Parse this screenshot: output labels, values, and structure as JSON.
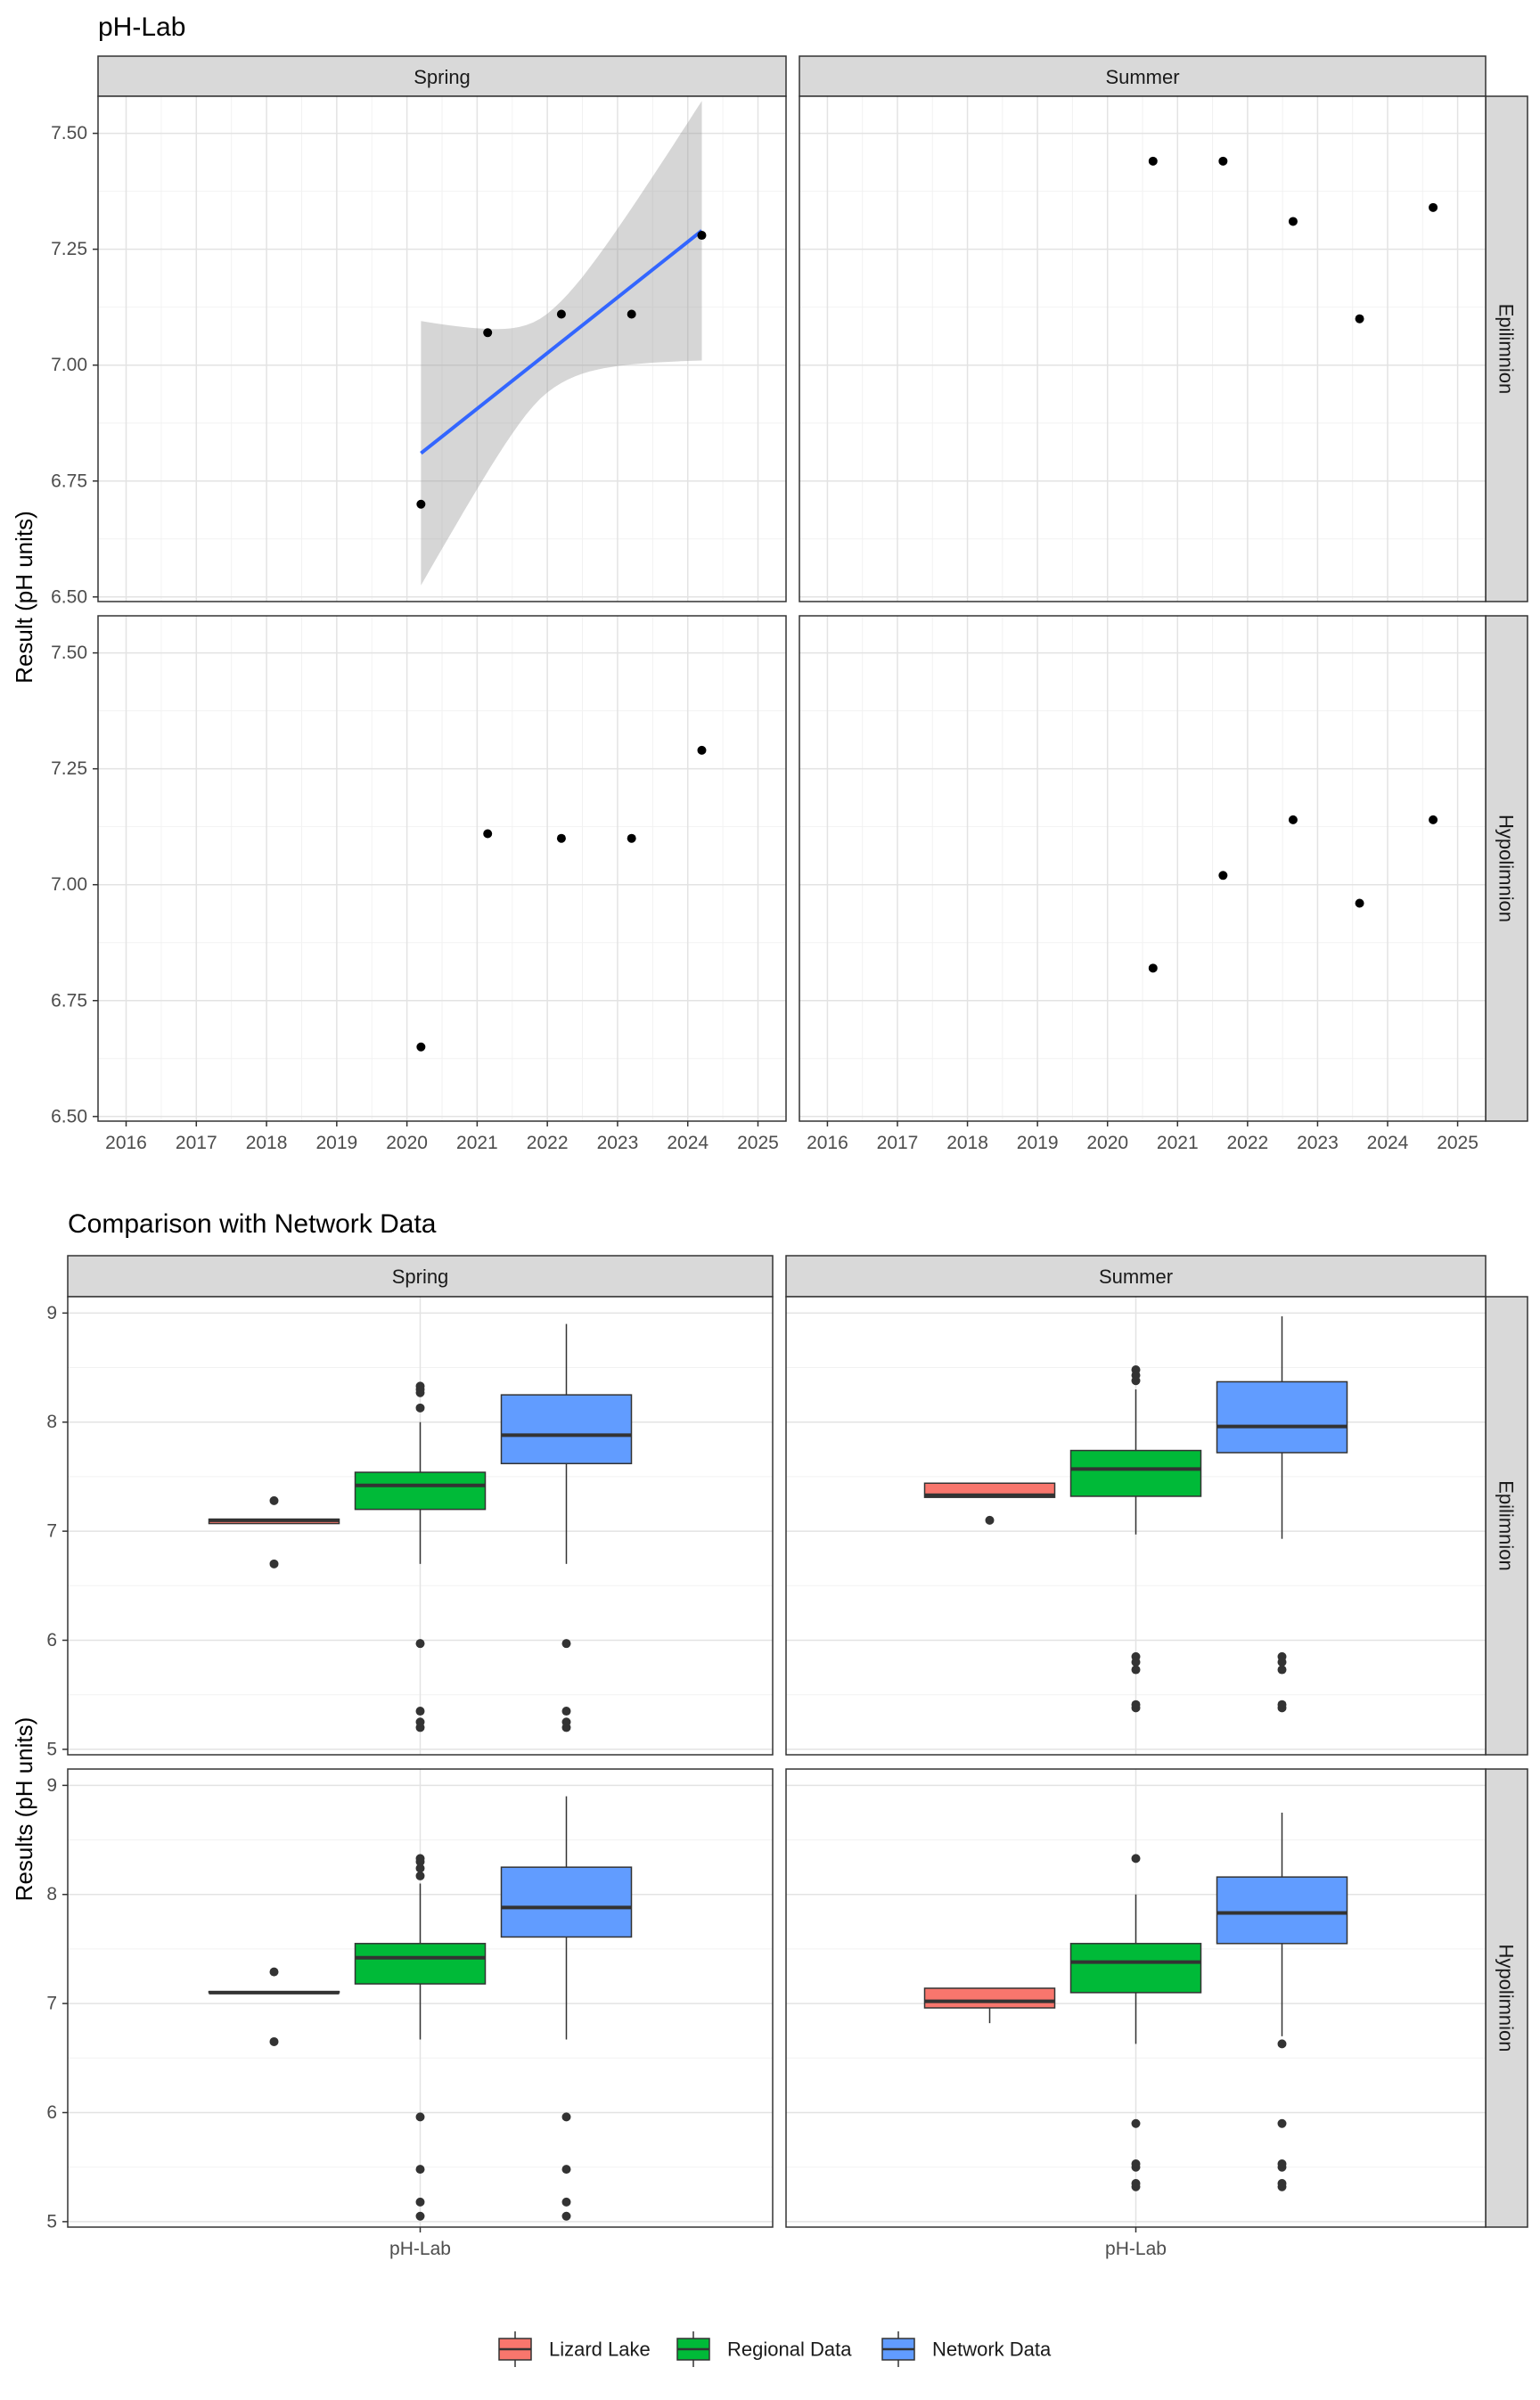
{
  "figure1": {
    "title": "pH-Lab",
    "ylabel": "Result (pH units)",
    "col_strips": [
      "Spring",
      "Summer"
    ],
    "row_strips": [
      "Epilimnion",
      "Hypolimnion"
    ],
    "x_ticks": [
      "2016",
      "2017",
      "2018",
      "2019",
      "2020",
      "2021",
      "2022",
      "2023",
      "2024",
      "2025"
    ],
    "y_ticks": [
      "6.50",
      "6.75",
      "7.00",
      "7.25",
      "7.50"
    ]
  },
  "figure2": {
    "title": "Comparison with Network Data",
    "ylabel": "Results (pH units)",
    "col_strips": [
      "Spring",
      "Summer"
    ],
    "row_strips": [
      "Epilimnion",
      "Hypolimnion"
    ],
    "x_tick": "pH-Lab",
    "y_ticks": [
      "5",
      "6",
      "7",
      "8",
      "9"
    ]
  },
  "legend": {
    "items": [
      {
        "label": "Lizard Lake",
        "color": "#F8766D"
      },
      {
        "label": "Regional Data",
        "color": "#00BA38"
      },
      {
        "label": "Network Data",
        "color": "#619CFF"
      }
    ]
  },
  "chart_data": [
    {
      "type": "scatter",
      "title": "pH-Lab",
      "ylabel": "Result (pH units)",
      "xlim": [
        2015.6,
        2025.4
      ],
      "ylim": [
        6.49,
        7.58
      ],
      "facets": {
        "columns": [
          "Spring",
          "Summer"
        ],
        "rows": [
          "Epilimnion",
          "Hypolimnion"
        ]
      },
      "panels": [
        {
          "column": "Spring",
          "row": "Epilimnion",
          "points": [
            {
              "x": 2020.2,
              "y": 6.7
            },
            {
              "x": 2021.15,
              "y": 7.07
            },
            {
              "x": 2022.2,
              "y": 7.11
            },
            {
              "x": 2023.2,
              "y": 7.11
            },
            {
              "x": 2024.2,
              "y": 7.28
            }
          ],
          "trend": {
            "x": [
              2020.2,
              2024.2
            ],
            "y": [
              6.81,
              7.29
            ],
            "ci_lower": [
              6.53,
              7.01
            ],
            "ci_upper": [
              7.1,
              7.57
            ],
            "color": "#3366FF"
          }
        },
        {
          "column": "Summer",
          "row": "Epilimnion",
          "points": [
            {
              "x": 2020.65,
              "y": 7.44
            },
            {
              "x": 2021.65,
              "y": 7.44
            },
            {
              "x": 2022.65,
              "y": 7.31
            },
            {
              "x": 2023.6,
              "y": 7.1
            },
            {
              "x": 2024.65,
              "y": 7.34
            }
          ]
        },
        {
          "column": "Spring",
          "row": "Hypolimnion",
          "points": [
            {
              "x": 2020.2,
              "y": 6.65
            },
            {
              "x": 2021.15,
              "y": 7.11
            },
            {
              "x": 2022.2,
              "y": 7.1
            },
            {
              "x": 2023.2,
              "y": 7.1
            },
            {
              "x": 2024.2,
              "y": 7.29
            }
          ]
        },
        {
          "column": "Summer",
          "row": "Hypolimnion",
          "points": [
            {
              "x": 2020.65,
              "y": 6.82
            },
            {
              "x": 2021.65,
              "y": 7.02
            },
            {
              "x": 2022.65,
              "y": 7.14
            },
            {
              "x": 2023.6,
              "y": 6.96
            },
            {
              "x": 2024.65,
              "y": 7.14
            }
          ]
        }
      ]
    },
    {
      "type": "box",
      "title": "Comparison with Network Data",
      "ylabel": "Results (pH units)",
      "categories": [
        "pH-Lab"
      ],
      "ylim": [
        4.95,
        9.15
      ],
      "facets": {
        "columns": [
          "Spring",
          "Summer"
        ],
        "rows": [
          "Epilimnion",
          "Hypolimnion"
        ]
      },
      "series": [
        "Lizard Lake",
        "Regional Data",
        "Network Data"
      ],
      "panels": [
        {
          "column": "Spring",
          "row": "Epilimnion",
          "boxes": [
            {
              "series": "Lizard Lake",
              "q1": 7.07,
              "median": 7.1,
              "q3": 7.11,
              "whisker_low": 7.07,
              "whisker_high": 7.11,
              "outliers": [
                6.7,
                7.28
              ]
            },
            {
              "series": "Regional Data",
              "q1": 7.2,
              "median": 7.42,
              "q3": 7.54,
              "whisker_low": 6.7,
              "whisker_high": 8.0,
              "outliers": [
                5.2,
                5.25,
                5.35,
                5.97,
                8.13,
                8.27,
                8.3,
                8.33
              ]
            },
            {
              "series": "Network Data",
              "q1": 7.62,
              "median": 7.88,
              "q3": 8.25,
              "whisker_low": 6.7,
              "whisker_high": 8.9,
              "outliers": [
                5.2,
                5.25,
                5.35,
                5.97
              ]
            }
          ]
        },
        {
          "column": "Summer",
          "row": "Epilimnion",
          "boxes": [
            {
              "series": "Lizard Lake",
              "q1": 7.31,
              "median": 7.33,
              "q3": 7.44,
              "whisker_low": 7.31,
              "whisker_high": 7.44,
              "outliers": [
                7.1
              ]
            },
            {
              "series": "Regional Data",
              "q1": 7.32,
              "median": 7.57,
              "q3": 7.74,
              "whisker_low": 6.97,
              "whisker_high": 8.3,
              "outliers": [
                5.38,
                5.41,
                5.73,
                5.8,
                5.85,
                8.38,
                8.43,
                8.48
              ]
            },
            {
              "series": "Network Data",
              "q1": 7.72,
              "median": 7.96,
              "q3": 8.37,
              "whisker_low": 6.93,
              "whisker_high": 8.97,
              "outliers": [
                5.38,
                5.41,
                5.73,
                5.8,
                5.85
              ]
            }
          ]
        },
        {
          "column": "Spring",
          "row": "Hypolimnion",
          "boxes": [
            {
              "series": "Lizard Lake",
              "q1": 7.1,
              "median": 7.1,
              "q3": 7.11,
              "whisker_low": 7.1,
              "whisker_high": 7.11,
              "outliers": [
                6.65,
                7.29
              ]
            },
            {
              "series": "Regional Data",
              "q1": 7.18,
              "median": 7.42,
              "q3": 7.55,
              "whisker_low": 6.67,
              "whisker_high": 8.1,
              "outliers": [
                5.05,
                5.18,
                5.48,
                5.96,
                8.17,
                8.24,
                8.3,
                8.33
              ]
            },
            {
              "series": "Network Data",
              "q1": 7.61,
              "median": 7.88,
              "q3": 8.25,
              "whisker_low": 6.67,
              "whisker_high": 8.9,
              "outliers": [
                5.05,
                5.18,
                5.48,
                5.96
              ]
            }
          ]
        },
        {
          "column": "Summer",
          "row": "Hypolimnion",
          "boxes": [
            {
              "series": "Lizard Lake",
              "q1": 6.96,
              "median": 7.02,
              "q3": 7.14,
              "whisker_low": 6.82,
              "whisker_high": 7.14,
              "outliers": []
            },
            {
              "series": "Regional Data",
              "q1": 7.1,
              "median": 7.38,
              "q3": 7.55,
              "whisker_low": 6.63,
              "whisker_high": 8.0,
              "outliers": [
                5.32,
                5.35,
                5.5,
                5.53,
                5.9,
                8.33
              ]
            },
            {
              "series": "Network Data",
              "q1": 7.55,
              "median": 7.83,
              "q3": 8.16,
              "whisker_low": 6.7,
              "whisker_high": 8.75,
              "outliers": [
                5.32,
                5.35,
                5.5,
                5.53,
                5.9,
                6.63
              ]
            }
          ]
        }
      ]
    }
  ]
}
